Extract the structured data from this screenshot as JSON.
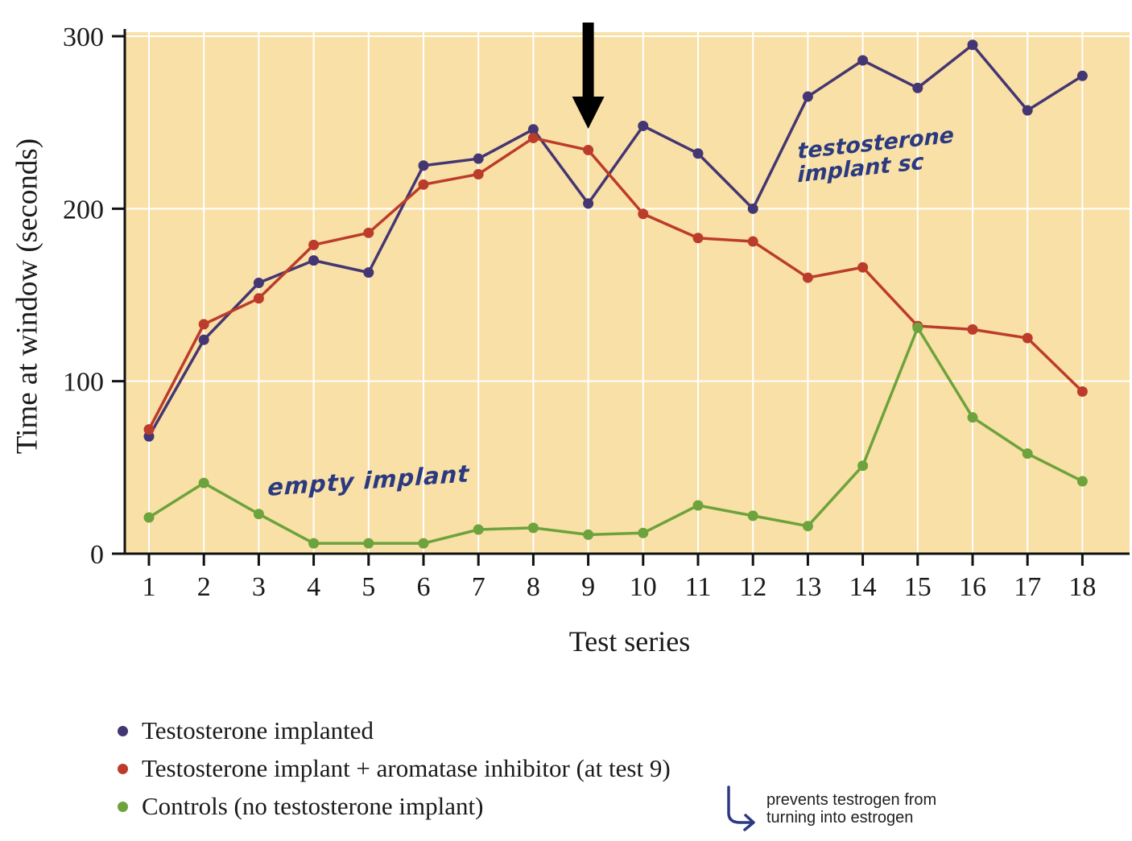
{
  "chart_data": {
    "type": "line",
    "title": "",
    "xlabel": "Test series",
    "ylabel": "Time at window (seconds)",
    "x": [
      1,
      2,
      3,
      4,
      5,
      6,
      7,
      8,
      9,
      10,
      11,
      12,
      13,
      14,
      15,
      16,
      17,
      18
    ],
    "yticks": [
      0,
      100,
      200,
      300
    ],
    "ylim": [
      0,
      300
    ],
    "grid": "white gridlines on tan plot background",
    "legend_position": "below chart, bottom-left",
    "plot_bg": "#f9e0a6",
    "grid_color": "#ffffff",
    "axis_color": "#111111",
    "arrow_at_x": 9,
    "series": [
      {
        "name": "Testosterone implanted",
        "color": "#443672",
        "values": [
          68,
          124,
          157,
          170,
          163,
          225,
          229,
          246,
          203,
          248,
          232,
          200,
          265,
          286,
          270,
          295,
          257,
          277
        ]
      },
      {
        "name": "Testosterone implant + aromatase inhibitor (at test 9)",
        "color": "#bc3c2b",
        "values": [
          72,
          133,
          148,
          179,
          186,
          214,
          220,
          241,
          234,
          197,
          183,
          181,
          160,
          166,
          132,
          130,
          125,
          94
        ]
      },
      {
        "name": "Controls (no testosterone implant)",
        "color": "#6da33c",
        "values": [
          21,
          41,
          23,
          6,
          6,
          6,
          14,
          15,
          11,
          12,
          28,
          22,
          16,
          51,
          131,
          79,
          58,
          42
        ]
      }
    ]
  },
  "annotations": {
    "handwritten_color": "#2b3a80",
    "implant_note_line1": "testosterone",
    "implant_note_line2": "implant sc",
    "empty_note": "empty implant",
    "aromatase_note_line1": "prevents testrogen from",
    "aromatase_note_line2": "turning into estrogen"
  }
}
